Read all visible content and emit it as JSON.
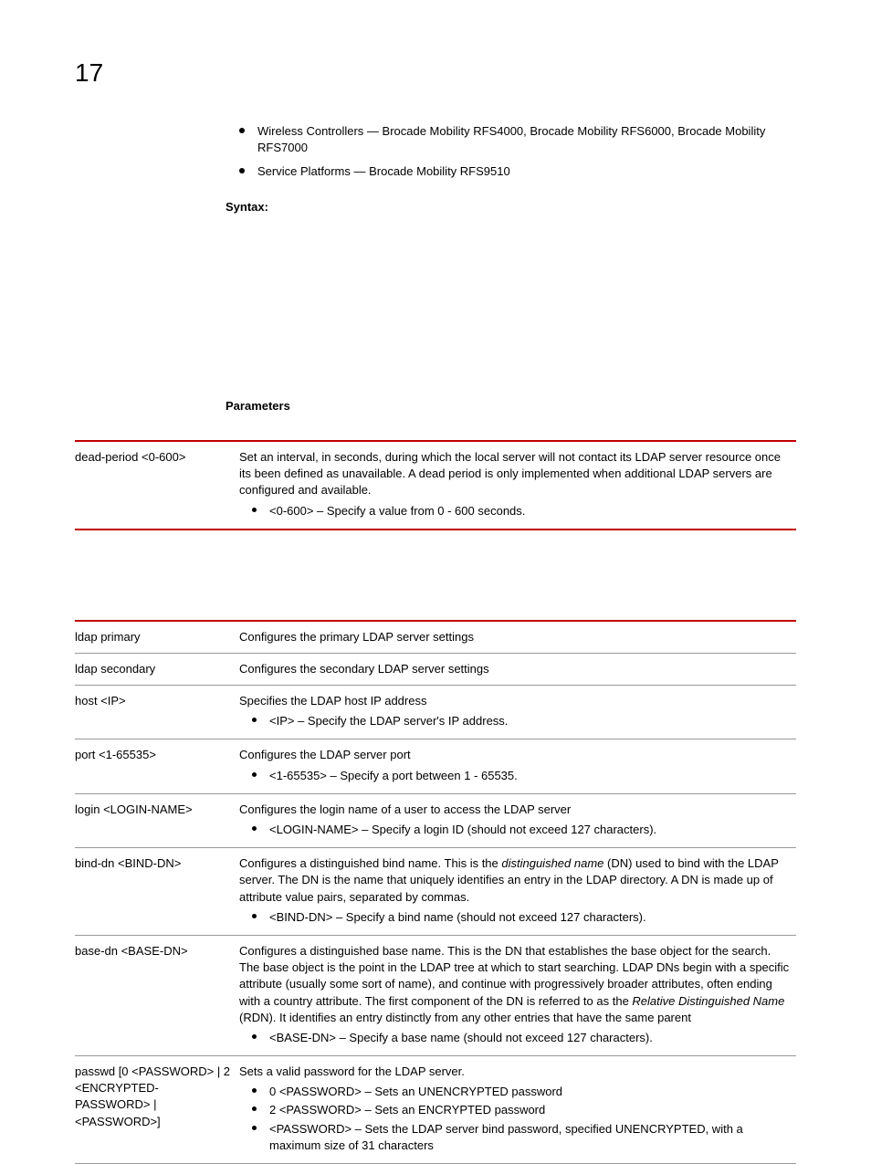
{
  "pageNumber": "17",
  "intro": {
    "bullets": [
      "Wireless Controllers — Brocade Mobility RFS4000, Brocade Mobility RFS6000, Brocade Mobility RFS7000",
      "Service Platforms — Brocade Mobility RFS9510"
    ]
  },
  "syntaxLabel": "Syntax:",
  "parametersLabel": "Parameters",
  "table1": {
    "row": {
      "param": "dead-period <0-600>",
      "desc": "Set an interval, in seconds, during which the local server will not contact its LDAP server resource once its been defined as unavailable. A dead period is only implemented when additional LDAP servers are configured and available.",
      "bullet": "<0-600> – Specify a value from 0 - 600 seconds."
    }
  },
  "table2": {
    "rows": {
      "ldapPrimary": {
        "param": "ldap primary",
        "desc": "Configures the primary LDAP server settings"
      },
      "ldapSecondary": {
        "param": "ldap secondary",
        "desc": "Configures the secondary LDAP server settings"
      },
      "host": {
        "param": "host <IP>",
        "desc": "Specifies the LDAP host IP address",
        "bullet": "<IP> – Specify the LDAP server's IP address."
      },
      "port": {
        "param": "port <1-65535>",
        "desc": "Configures the LDAP server port",
        "bullet": "<1-65535> – Specify a port between 1 - 65535."
      },
      "login": {
        "param": "login <LOGIN-NAME>",
        "desc": "Configures the login name of a user to access the LDAP server",
        "bullet": "<LOGIN-NAME> – Specify a login ID (should not exceed 127 characters)."
      },
      "binddn": {
        "param": "bind-dn <BIND-DN>",
        "desc_pre": "Configures a distinguished bind name. This is the ",
        "desc_italic": "distinguished name",
        "desc_post": " (DN) used to bind with the LDAP server. The DN is the name that uniquely identifies an entry in the LDAP directory. A DN is made up of attribute value pairs, separated by commas.",
        "bullet": "<BIND-DN> – Specify a bind name (should not exceed 127 characters)."
      },
      "basedn": {
        "param": "base-dn <BASE-DN>",
        "desc_pre": "Configures a distinguished base name. This is the DN that establishes the base object for the search. The base object is the point in the LDAP tree at which to start searching. LDAP DNs begin with a specific attribute (usually some sort of name), and continue with progressively broader attributes, often ending with a country attribute. The first component of the DN is referred to as the ",
        "desc_italic": "Relative Distinguished Name",
        "desc_post": " (RDN). It identifies an entry distinctly from any other entries that have the same parent",
        "bullet": "<BASE-DN> – Specify a base name (should not exceed 127 characters)."
      },
      "passwd": {
        "param": "passwd [0 <PASSWORD> | 2 <ENCRYPTED-PASSWORD> | <PASSWORD>]",
        "desc": "Sets a valid password for the LDAP server.",
        "b1": "0 <PASSWORD> – Sets an UNENCRYPTED password",
        "b2": "2 <PASSWORD> – Sets an ENCRYPTED password",
        "b3": "<PASSWORD> – Sets the LDAP server bind password, specified UNENCRYPTED, with a maximum size of 31 characters"
      }
    }
  },
  "colors": {
    "rule": "#c00000",
    "divider": "#999999",
    "text": "#000000",
    "bg": "#ffffff"
  }
}
